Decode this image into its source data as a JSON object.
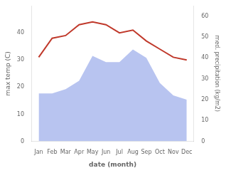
{
  "chart_data": {
    "type": "line",
    "xlabel": "date (month)",
    "ylabel": "max temp (C)",
    "y2label": "med. precipitation (kg/m2)",
    "categories": [
      "Jan",
      "Feb",
      "Mar",
      "Apr",
      "May",
      "Jun",
      "Jul",
      "Aug",
      "Sep",
      "Oct",
      "Nov",
      "Dec"
    ],
    "series": [
      {
        "type": "area",
        "axis": "y2",
        "color": "#b8c4f0",
        "values": [
          23,
          23,
          25,
          29,
          41,
          38,
          38,
          44,
          40,
          28,
          22,
          20
        ]
      },
      {
        "type": "line",
        "color": "#c0392b",
        "values": [
          31,
          38,
          39,
          43,
          44,
          43,
          40,
          41,
          37,
          34,
          31,
          30
        ]
      }
    ],
    "ylim": [
      0,
      50
    ],
    "yticks": [
      0,
      10,
      20,
      30,
      40
    ],
    "y2lim": [
      0,
      65
    ],
    "y2ticks": [
      0,
      10,
      20,
      30,
      40,
      50,
      60
    ],
    "grid": false
  }
}
